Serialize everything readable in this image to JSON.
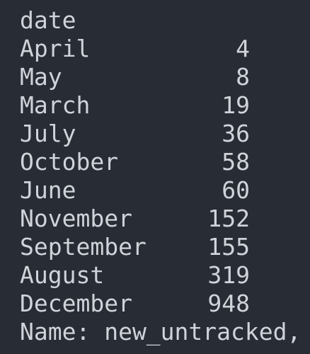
{
  "output": {
    "index_name": "date",
    "rows": [
      {
        "label": "April",
        "value": "4"
      },
      {
        "label": "May",
        "value": "8"
      },
      {
        "label": "March",
        "value": "19"
      },
      {
        "label": "July",
        "value": "36"
      },
      {
        "label": "October",
        "value": "58"
      },
      {
        "label": "June",
        "value": "60"
      },
      {
        "label": "November",
        "value": "152"
      },
      {
        "label": "September",
        "value": "155"
      },
      {
        "label": "August",
        "value": "319"
      },
      {
        "label": "December",
        "value": "948"
      }
    ],
    "footer": "Name: new_untracked,"
  }
}
